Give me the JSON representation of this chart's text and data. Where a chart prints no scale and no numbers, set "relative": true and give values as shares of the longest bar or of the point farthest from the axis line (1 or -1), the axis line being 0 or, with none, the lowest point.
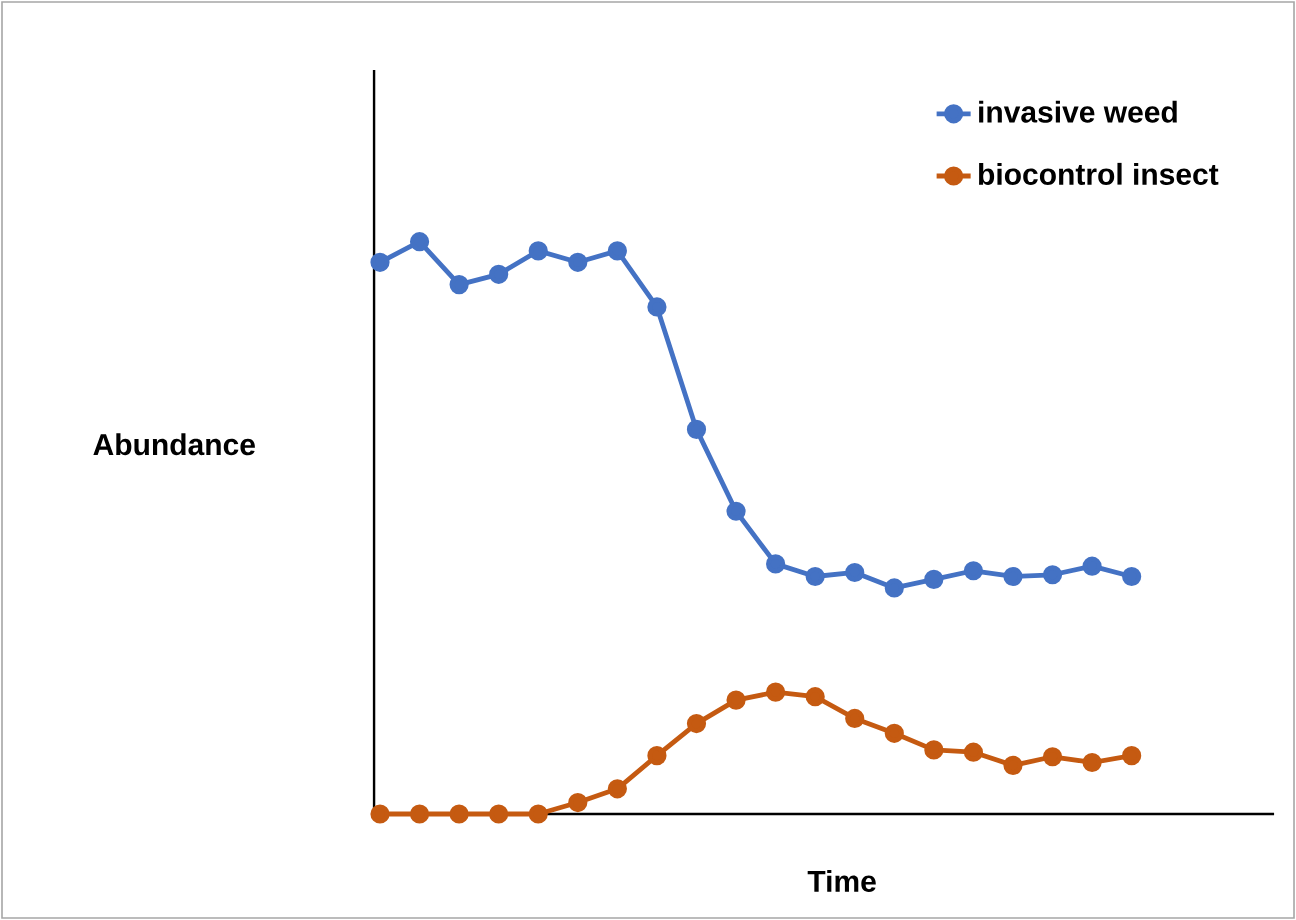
{
  "chart_data": {
    "type": "line",
    "relative": true,
    "xlabel": "Time",
    "ylabel": "Abundance",
    "legend": "top right",
    "marker": "circle",
    "line_style": "solid",
    "categories": [
      null,
      null,
      null,
      null,
      null,
      null,
      null,
      null,
      null,
      null,
      null,
      null,
      null,
      null,
      null,
      null,
      null,
      null,
      null,
      null
    ],
    "series": [
      {
        "name": "invasive weed",
        "color": "#4472c4",
        "values": [
          0.964,
          1.0,
          0.925,
          0.943,
          0.984,
          0.964,
          0.984,
          0.886,
          0.672,
          0.529,
          0.437,
          0.415,
          0.422,
          0.395,
          0.41,
          0.425,
          0.415,
          0.418,
          0.433,
          0.415
        ]
      },
      {
        "name": "biocontrol insect",
        "color": "#c55a11",
        "values": [
          0,
          0,
          0,
          0,
          0,
          0.02,
          0.044,
          0.102,
          0.158,
          0.199,
          0.213,
          0.205,
          0.167,
          0.141,
          0.112,
          0.108,
          0.085,
          0.1,
          0.09,
          0.102
        ]
      }
    ]
  }
}
